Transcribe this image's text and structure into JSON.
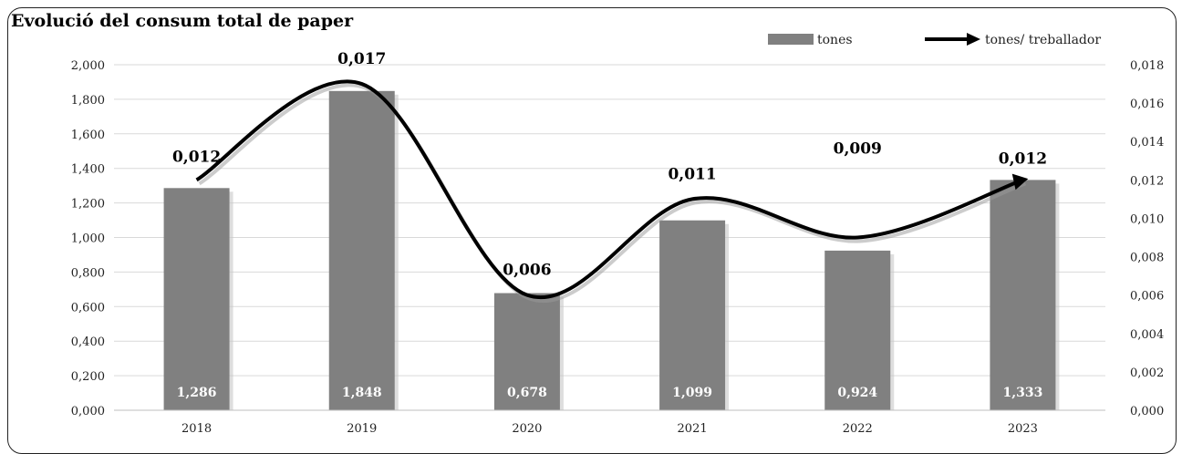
{
  "chart_data": {
    "type": "bar",
    "title": "Evolució del consum total de paper",
    "categories": [
      "2018",
      "2019",
      "2020",
      "2021",
      "2022",
      "2023"
    ],
    "series": [
      {
        "name": "tones",
        "type": "bar",
        "axis": "left",
        "values": [
          1.286,
          1.848,
          0.678,
          1.099,
          0.924,
          1.333
        ],
        "labels": [
          "1,286",
          "1,848",
          "0,678",
          "1,099",
          "0,924",
          "1,333"
        ]
      },
      {
        "name": "tones/ treballador",
        "type": "line",
        "axis": "right",
        "values": [
          0.012,
          0.017,
          0.006,
          0.011,
          0.009,
          0.012
        ],
        "labels": [
          "0,012",
          "0,017",
          "0,006",
          "0,011",
          "0,009",
          "0,012"
        ]
      }
    ],
    "y_left": {
      "range": [
        0,
        2.0
      ],
      "ticks": [
        "0,000",
        "0,200",
        "0,400",
        "0,600",
        "0,800",
        "1,000",
        "1,200",
        "1,400",
        "1,600",
        "1,800",
        "2,000"
      ]
    },
    "y_right": {
      "range": [
        0,
        0.018
      ],
      "ticks": [
        "0,000",
        "0,002",
        "0,004",
        "0,006",
        "0,008",
        "0,010",
        "0,012",
        "0,014",
        "0,016",
        "0,018"
      ]
    },
    "grid": true,
    "legend_position": "top-right",
    "colors": {
      "bar": "#808080",
      "line": "#000000",
      "grid": "#d9d9d9"
    }
  }
}
